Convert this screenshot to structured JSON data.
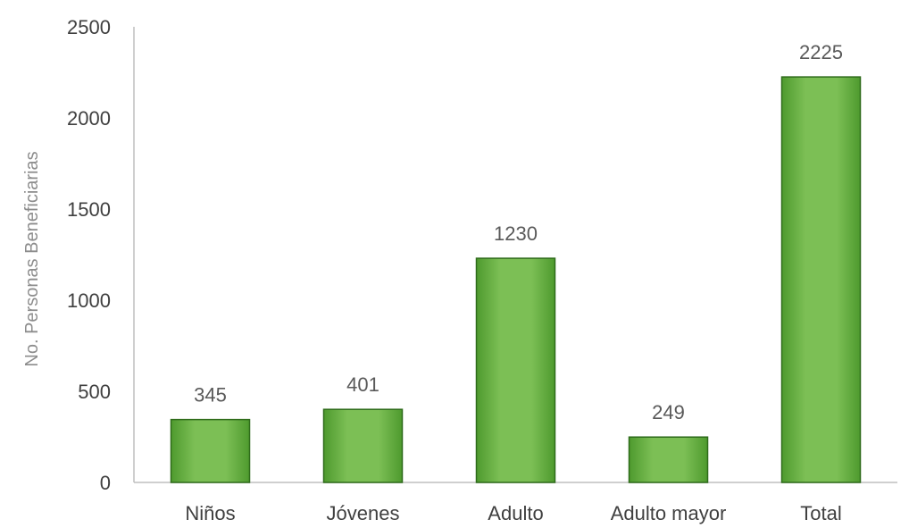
{
  "chart_data": {
    "type": "bar",
    "title": "",
    "xlabel": "",
    "ylabel": "No. Personas Beneficiarias",
    "categories": [
      "Niños",
      "Jóvenes",
      "Adulto",
      "Adulto mayor",
      "Total"
    ],
    "values": [
      345,
      401,
      1230,
      249,
      2225
    ],
    "data_labels": [
      "345",
      "401",
      "1230",
      "249",
      "2225"
    ],
    "ylim": [
      0,
      2500
    ],
    "yticks": [
      0,
      500,
      1000,
      1500,
      2000,
      2500
    ],
    "ytick_labels": [
      "0",
      "500",
      "1000",
      "1500",
      "2000",
      "2500"
    ],
    "grid": false,
    "legend": "none",
    "bar_color": "#70ad47",
    "bar_border_color": "#2e6b1a"
  }
}
